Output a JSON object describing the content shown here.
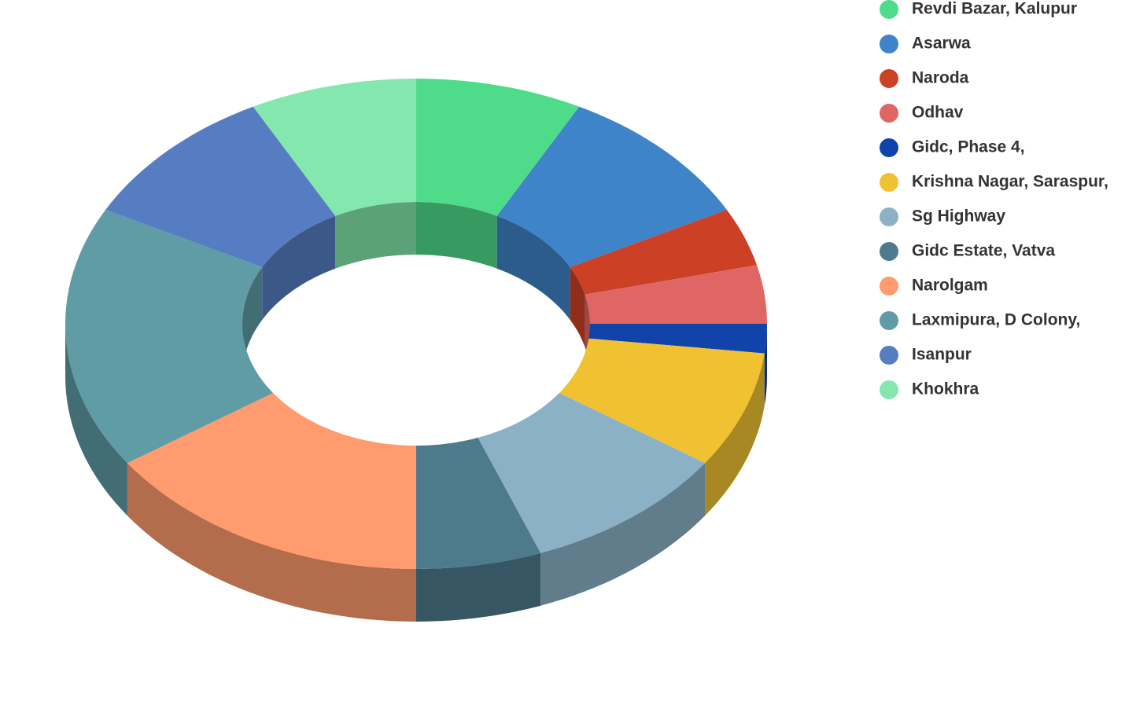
{
  "chart_data": {
    "type": "donut3d",
    "categories": [
      "Revdi Bazar, Kalupur",
      "Asarwa",
      "Naroda",
      "Odhav",
      "Gidc, Phase 4,",
      "Krishna Nagar, Saraspur,",
      "Sg Highway",
      "Gidc Estate, Vatva",
      "Narolgam",
      "Laxmipura, D Colony,",
      "Isanpur",
      "Khokhra"
    ],
    "values": [
      4,
      5,
      2,
      2,
      1,
      4,
      5,
      3,
      8,
      9,
      5,
      4
    ],
    "colors": [
      "#4fdc8a",
      "#3f83c8",
      "#cc4126",
      "#e06666",
      "#1044aa",
      "#f0c232",
      "#8bb1c6",
      "#4d7b8d",
      "#ff9b6e",
      "#609ca6",
      "#567dc2",
      "#84e7ad"
    ],
    "legend": "right"
  }
}
